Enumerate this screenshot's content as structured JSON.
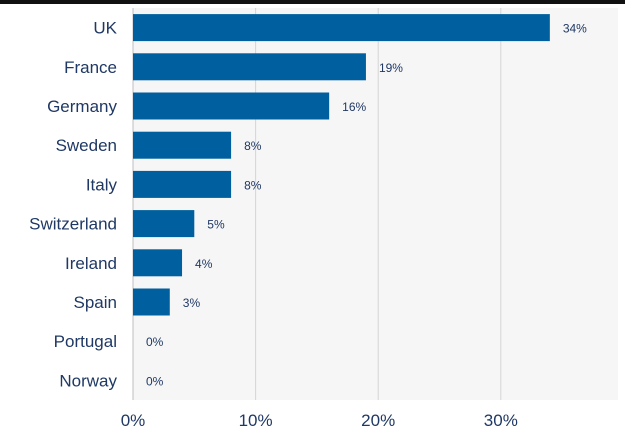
{
  "chart_data": {
    "type": "bar",
    "orientation": "horizontal",
    "title": "",
    "xlabel": "",
    "ylabel": "",
    "categories": [
      "UK",
      "France",
      "Germany",
      "Sweden",
      "Italy",
      "Switzerland",
      "Ireland",
      "Spain",
      "Portugal",
      "Norway"
    ],
    "values": [
      34,
      19,
      16,
      8,
      8,
      5,
      4,
      3,
      0,
      0
    ],
    "value_labels": [
      "34%",
      "19%",
      "16%",
      "8%",
      "8%",
      "5%",
      "4%",
      "3%",
      "0%",
      "0%"
    ],
    "xlim": [
      0,
      40
    ],
    "xticks": [
      0,
      10,
      20,
      30
    ],
    "xtick_labels": [
      "0%",
      "10%",
      "20%",
      "30%"
    ],
    "grid": "vertical",
    "legend": "none",
    "colors": {
      "bar": "#005f9e",
      "plot_background": "#f6f6f6",
      "grid": "#d5d5d5",
      "text": "#1f3864"
    }
  }
}
